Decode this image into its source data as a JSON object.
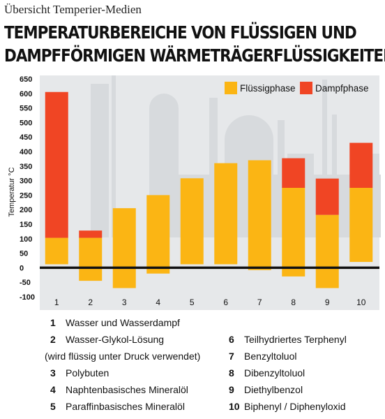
{
  "kicker": "Übersicht Temperier-Medien",
  "headline": {
    "line1": "TEMPERATURBEREICHE VON FLÜSSIGEN UND",
    "line2": "DAMPFFÖRMIGEN WÄRMETRÄGERFLÜSSIGKEITEN"
  },
  "colors": {
    "liquid": "#fbb514",
    "vapor": "#f04524",
    "background_panel": "#e6e8ea",
    "silhouette": "#d7dadd",
    "zero_line": "#111111"
  },
  "chart_data": {
    "type": "bar",
    "bar_style": "floating-range",
    "categories": [
      "1",
      "2",
      "3",
      "4",
      "5",
      "6",
      "7",
      "8",
      "9",
      "10"
    ],
    "ylabel": "Temperatur °C",
    "ylim": [
      -100,
      650
    ],
    "yticks": [
      650,
      600,
      550,
      500,
      450,
      400,
      350,
      300,
      250,
      200,
      150,
      100,
      50,
      0,
      -50,
      -100
    ],
    "legend_placement": "top-right",
    "series": [
      {
        "name": "Flüssigphase",
        "color": "#fbb514",
        "ranges": [
          [
            12,
            103
          ],
          [
            -45,
            103
          ],
          [
            -70,
            205
          ],
          [
            -20,
            250
          ],
          [
            12,
            308
          ],
          [
            12,
            360
          ],
          [
            -8,
            370
          ],
          [
            -30,
            275
          ],
          [
            -70,
            182
          ],
          [
            20,
            275
          ]
        ]
      },
      {
        "name": "Dampfphase",
        "color": "#f04524",
        "ranges": [
          [
            103,
            605
          ],
          [
            103,
            128
          ],
          null,
          null,
          null,
          null,
          null,
          [
            275,
            377
          ],
          [
            182,
            307
          ],
          [
            275,
            430
          ]
        ]
      }
    ]
  },
  "key_list": {
    "left": [
      {
        "num": "1",
        "text": "Wasser und Wasserdampf"
      },
      {
        "num": "2",
        "text": "Wasser-Glykol-Lösung"
      },
      {
        "num": "3",
        "text": "Polybuten"
      },
      {
        "num": "4",
        "text": "Naphtenbasisches Mineralöl"
      },
      {
        "num": "5",
        "text": "Paraffinbasisches Mineralöl"
      }
    ],
    "note": "(wird flüssig unter Druck verwendet)",
    "right": [
      {
        "num": "6",
        "text": "Teilhydriertes Terphenyl"
      },
      {
        "num": "7",
        "text": "Benzyltoluol"
      },
      {
        "num": "8",
        "text": "Dibenzyltoluol"
      },
      {
        "num": "9",
        "text": "Diethylbenzol"
      },
      {
        "num": "10",
        "text": "Biphenyl / Diphenyloxid"
      }
    ]
  }
}
